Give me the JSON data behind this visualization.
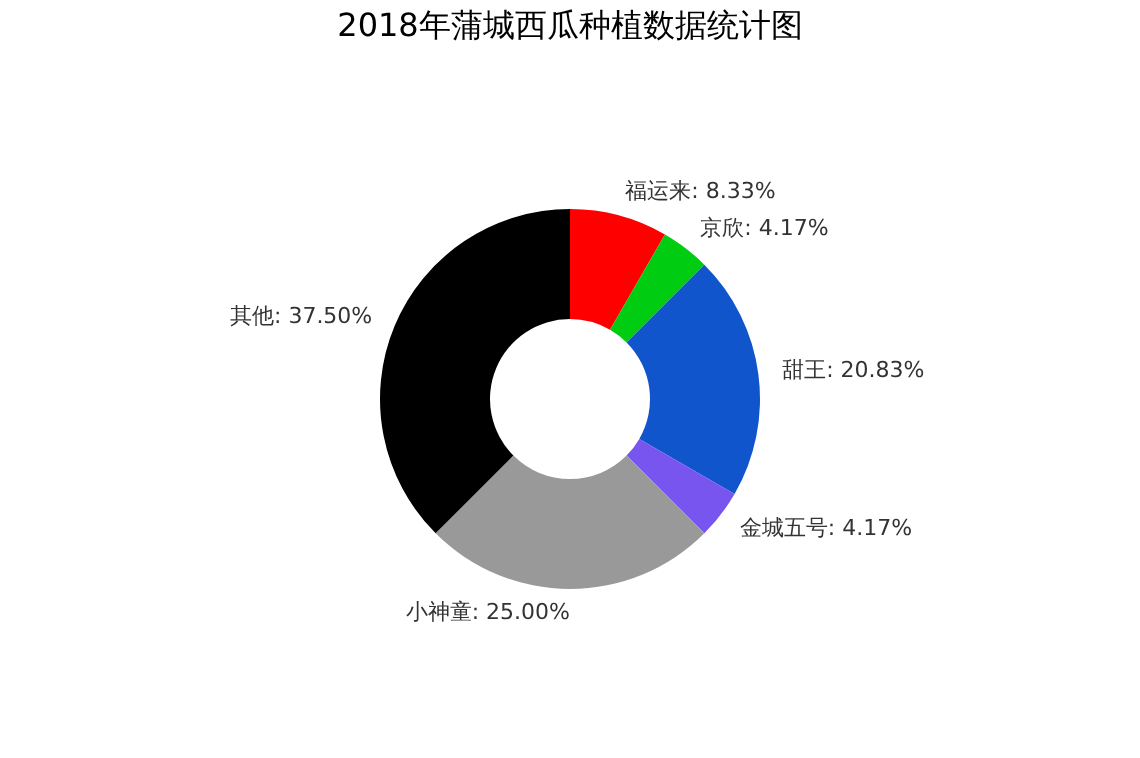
{
  "chart_data": {
    "type": "donut",
    "title": "2018年蒲城西瓜种植数据统计图",
    "categories": [
      "福运来",
      "京欣",
      "甜王",
      "金城五号",
      "小神童",
      "其他"
    ],
    "values": [
      8.33,
      4.17,
      20.83,
      4.17,
      25.0,
      37.5
    ],
    "colors": [
      "#ff0000",
      "#00cc11",
      "#1155cc",
      "#7755ee",
      "#999999",
      "#000000"
    ],
    "value_labels": [
      ": 8.33%",
      ": 4.17%",
      ": 20.83%",
      ": 4.17%",
      ": 25.00%",
      ": 37.50%"
    ],
    "legend": false
  }
}
